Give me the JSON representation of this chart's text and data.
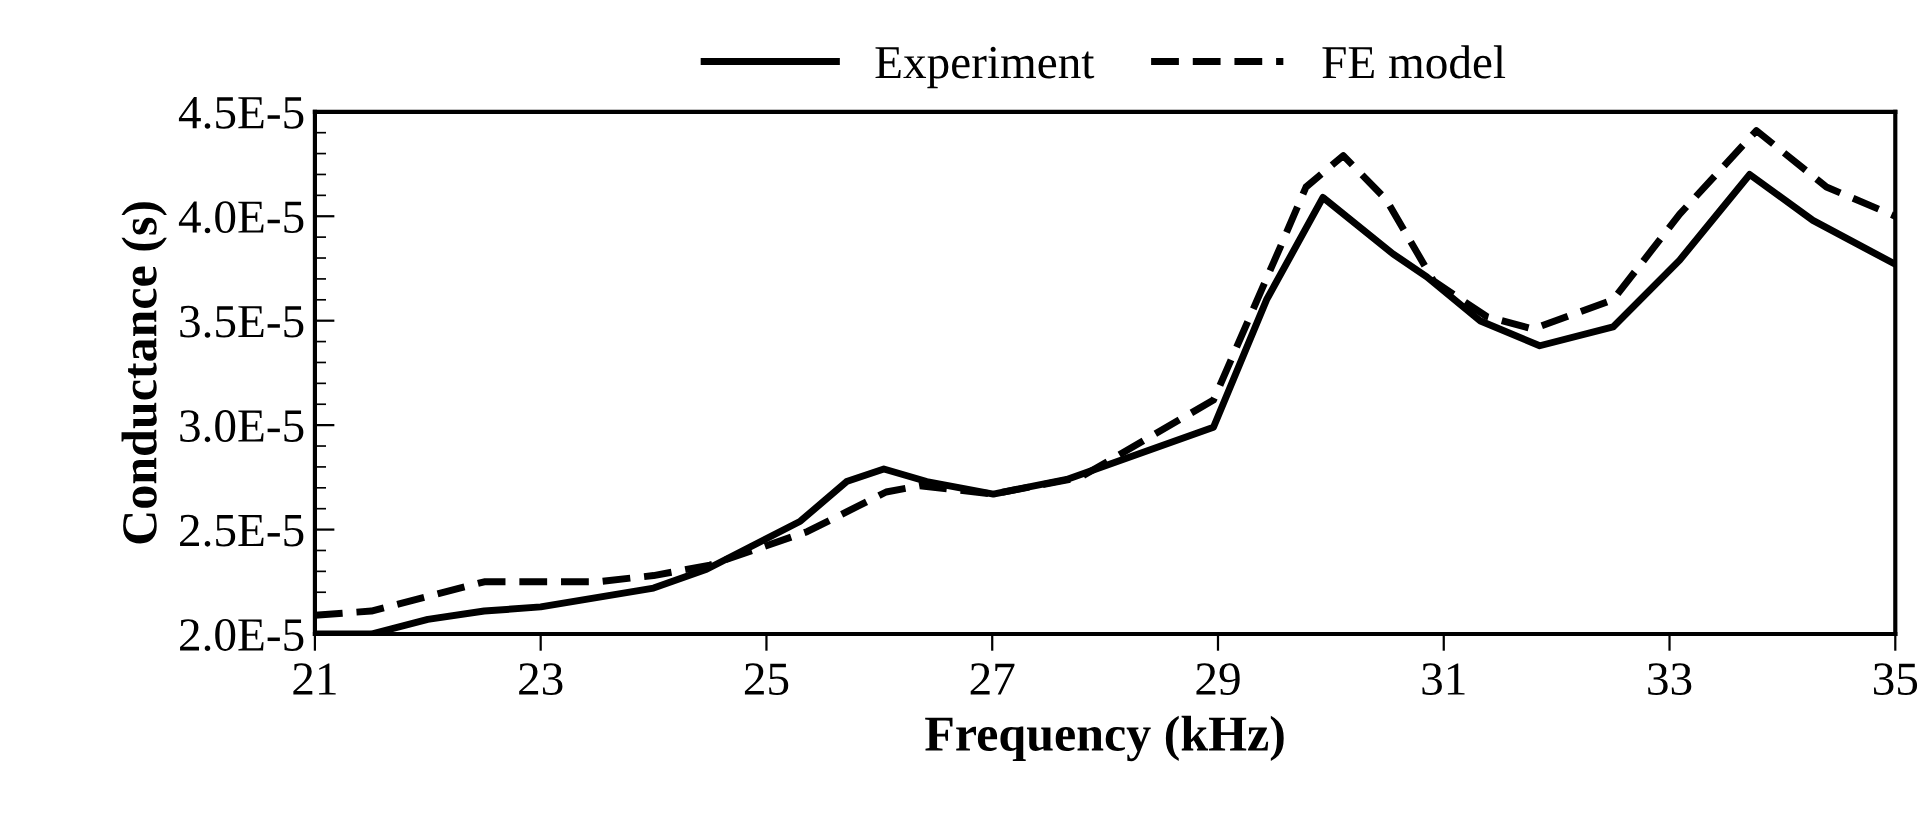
{
  "chart_data": {
    "type": "line",
    "xlabel": "Frequency (kHz)",
    "ylabel": "Conductance (s)",
    "legend": "top",
    "grid": false,
    "xlim": [
      21,
      35
    ],
    "ylim": [
      2e-05,
      4.5e-05
    ],
    "xticks": [
      21,
      23,
      25,
      27,
      29,
      31,
      33,
      35
    ],
    "yticks": [
      {
        "value": 2e-05,
        "label": "2.0E-5"
      },
      {
        "value": 2.5e-05,
        "label": "2.5E-5"
      },
      {
        "value": 3e-05,
        "label": "3.0E-5"
      },
      {
        "value": 3.5e-05,
        "label": "3.5E-5"
      },
      {
        "value": 4e-05,
        "label": "4.0E-5"
      },
      {
        "value": 4.5e-05,
        "label": "4.5E-5"
      }
    ],
    "series": [
      {
        "name": "Experiment",
        "color": "#000000",
        "line_style": "solid",
        "x": [
          21,
          21.5,
          22,
          22.5,
          23,
          24,
          24.47,
          25.3,
          25.71,
          26.04,
          26.42,
          27.01,
          27.66,
          28.96,
          29.43,
          29.93,
          30.55,
          30.85,
          31.32,
          31.85,
          32.5,
          33.09,
          33.71,
          34.27,
          35
        ],
        "values": [
          2e-05,
          2e-05,
          2.07e-05,
          2.11e-05,
          2.13e-05,
          2.22e-05,
          2.31e-05,
          2.54e-05,
          2.73e-05,
          2.79e-05,
          2.73e-05,
          2.67e-05,
          2.74e-05,
          2.99e-05,
          3.6e-05,
          4.09e-05,
          3.82e-05,
          3.71e-05,
          3.5e-05,
          3.38e-05,
          3.47e-05,
          3.79e-05,
          4.2e-05,
          3.98e-05,
          3.77e-05
        ]
      },
      {
        "name": "FE model",
        "color": "#000000",
        "line_style": "dashed",
        "x": [
          21,
          21.5,
          22,
          22.5,
          23,
          23.5,
          24,
          24.5,
          25.36,
          26.06,
          26.36,
          27.01,
          27.78,
          28.96,
          29.55,
          29.78,
          30.11,
          30.49,
          30.91,
          31.38,
          31.79,
          32.5,
          33.09,
          33.77,
          34.39,
          35
        ],
        "values": [
          2.09e-05,
          2.11e-05,
          2.18e-05,
          2.25e-05,
          2.25e-05,
          2.25e-05,
          2.28e-05,
          2.33e-05,
          2.49e-05,
          2.68e-05,
          2.71e-05,
          2.67e-05,
          2.75e-05,
          3.12e-05,
          3.85e-05,
          4.14e-05,
          4.29e-05,
          4.08e-05,
          3.69e-05,
          3.52e-05,
          3.46e-05,
          3.6e-05,
          4.01e-05,
          4.41e-05,
          4.14e-05,
          4e-05
        ]
      }
    ]
  }
}
